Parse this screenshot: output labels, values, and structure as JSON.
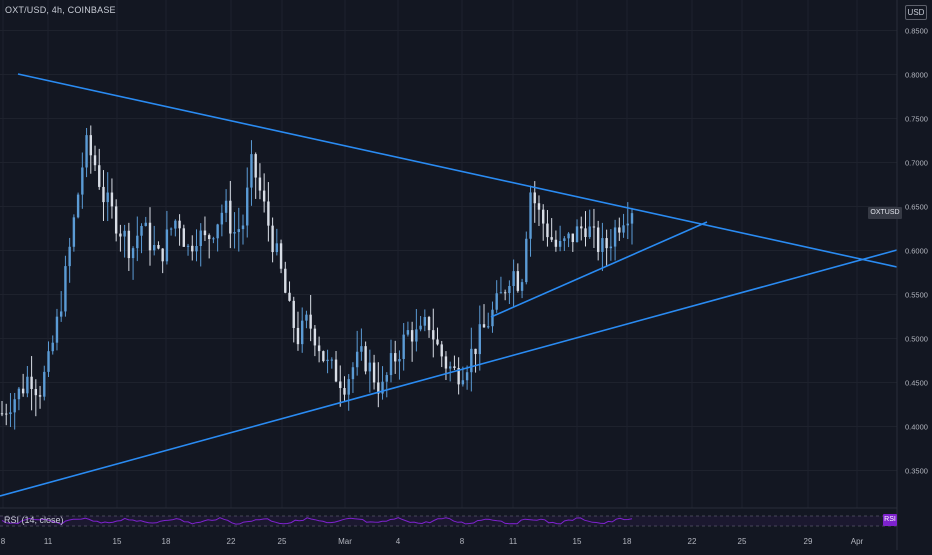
{
  "header": {
    "symbol_line": "OXT/USD, 4h, COINBASE",
    "currency": "USD"
  },
  "price_badge": "OXTUSD",
  "rsi": {
    "label": "RSI (14, close)",
    "badge": "RSI"
  },
  "colors": {
    "background": "#131722",
    "candle_up": "#5b9bd5",
    "candle_down": "#d8dde6",
    "trendline": "#2a8bf2",
    "rsi_line": "#7e22ce",
    "grid": "#1e222d"
  },
  "price_axis": {
    "ticks": [
      "0.8500",
      "0.8000",
      "0.7500",
      "0.7000",
      "0.6500",
      "0.6000",
      "0.5500",
      "0.5000",
      "0.4500",
      "0.4000",
      "0.3500"
    ],
    "min": 0.3,
    "max": 0.87
  },
  "time_axis": {
    "ticks": [
      "8",
      "11",
      "15",
      "18",
      "22",
      "25",
      "Mar",
      "4",
      "8",
      "11",
      "15",
      "18",
      "22",
      "25",
      "29",
      "Apr"
    ]
  },
  "chart_data": {
    "type": "candlestick",
    "symbol": "OXT/USD",
    "interval": "4h",
    "exchange": "COINBASE",
    "approx_close_series": [
      0.415,
      0.43,
      0.44,
      0.46,
      0.44,
      0.47,
      0.52,
      0.58,
      0.65,
      0.72,
      0.7,
      0.66,
      0.64,
      0.62,
      0.6,
      0.63,
      0.61,
      0.59,
      0.62,
      0.64,
      0.6,
      0.62,
      0.61,
      0.63,
      0.65,
      0.62,
      0.63,
      0.7,
      0.66,
      0.62,
      0.58,
      0.53,
      0.5,
      0.52,
      0.5,
      0.47,
      0.46,
      0.45,
      0.47,
      0.48,
      0.46,
      0.44,
      0.47,
      0.49,
      0.51,
      0.5,
      0.52,
      0.49,
      0.47,
      0.46,
      0.47,
      0.49,
      0.51,
      0.53,
      0.55,
      0.58,
      0.56,
      0.67,
      0.64,
      0.62,
      0.6,
      0.61,
      0.62,
      0.63,
      0.61,
      0.6,
      0.62,
      0.64,
      0.65
    ],
    "trendlines": [
      {
        "from": [
          "Feb 8",
          0.8
        ],
        "to": [
          "Apr 2",
          0.59
        ]
      },
      {
        "from": [
          "Feb 6",
          0.32
        ],
        "to": [
          "Apr 3",
          0.602
        ]
      },
      {
        "from": [
          "Mar 9",
          0.525
        ],
        "to": [
          "Mar 22",
          0.635
        ]
      }
    ]
  }
}
